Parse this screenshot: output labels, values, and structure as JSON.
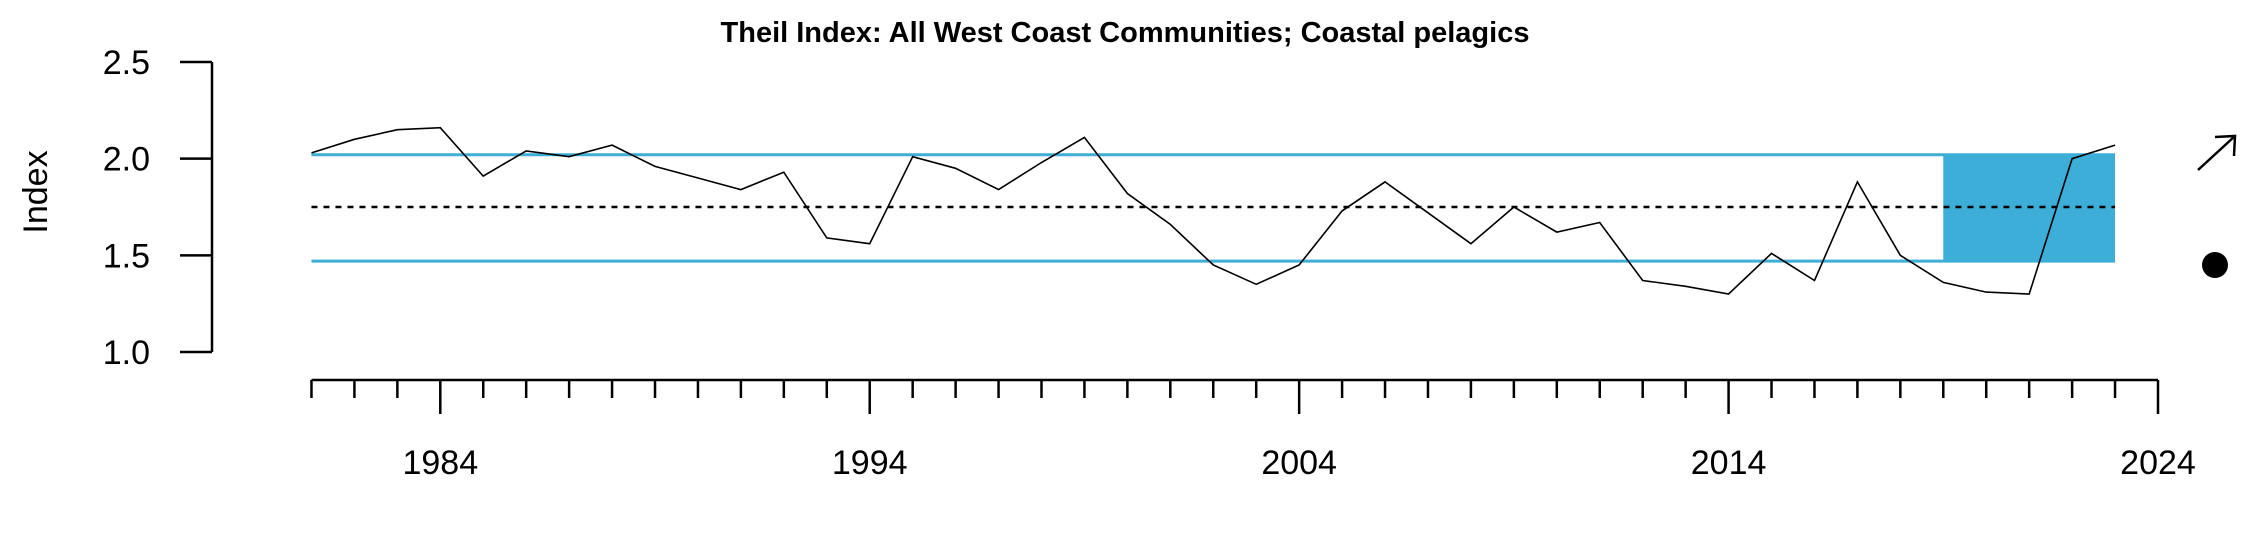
{
  "chart_data": {
    "type": "line",
    "title": "Theil Index: All West Coast Communities; Coastal pelagics",
    "xlabel": "",
    "ylabel": "Index",
    "xlim": [
      1980.5,
      2024
    ],
    "ylim": [
      1.0,
      2.5
    ],
    "x_ticks": [
      1984,
      1994,
      2004,
      2014,
      2024
    ],
    "y_ticks": [
      "1.0",
      "1.5",
      "2.0",
      "2.5"
    ],
    "x_minor_ticks_every": 1,
    "x": [
      1981,
      1982,
      1983,
      1984,
      1985,
      1986,
      1987,
      1988,
      1989,
      1990,
      1991,
      1992,
      1993,
      1994,
      1995,
      1996,
      1997,
      1998,
      1999,
      2000,
      2001,
      2002,
      2003,
      2004,
      2005,
      2006,
      2007,
      2008,
      2009,
      2010,
      2011,
      2012,
      2013,
      2014,
      2015,
      2016,
      2017,
      2018,
      2019,
      2020,
      2021,
      2022,
      2023
    ],
    "series": [
      {
        "values": [
          2.03,
          2.1,
          2.15,
          2.16,
          1.91,
          2.04,
          2.01,
          2.07,
          1.96,
          1.9,
          1.84,
          1.93,
          1.59,
          1.56,
          2.01,
          1.95,
          1.84,
          1.98,
          2.11,
          1.82,
          1.66,
          1.45,
          1.35,
          1.45,
          1.73,
          1.88,
          1.72,
          1.56,
          1.75,
          1.62,
          1.67,
          1.37,
          1.34,
          1.3,
          1.51,
          1.37,
          1.88,
          1.5,
          1.36,
          1.31,
          1.3,
          2.0,
          2.07
        ]
      }
    ],
    "reference_lines": {
      "mean": 1.75,
      "upper": 2.02,
      "lower": 1.47
    },
    "highlight_range": {
      "x_start": 2019,
      "x_end": 2023,
      "y_low": 1.47,
      "y_high": 2.02
    },
    "colors": {
      "band": "#3daed8",
      "reference": "#3daed8",
      "line": "#000000",
      "mean": "#000000"
    },
    "trend_indicator": "arrow-up-right",
    "mean_indicator": "dot-below"
  }
}
